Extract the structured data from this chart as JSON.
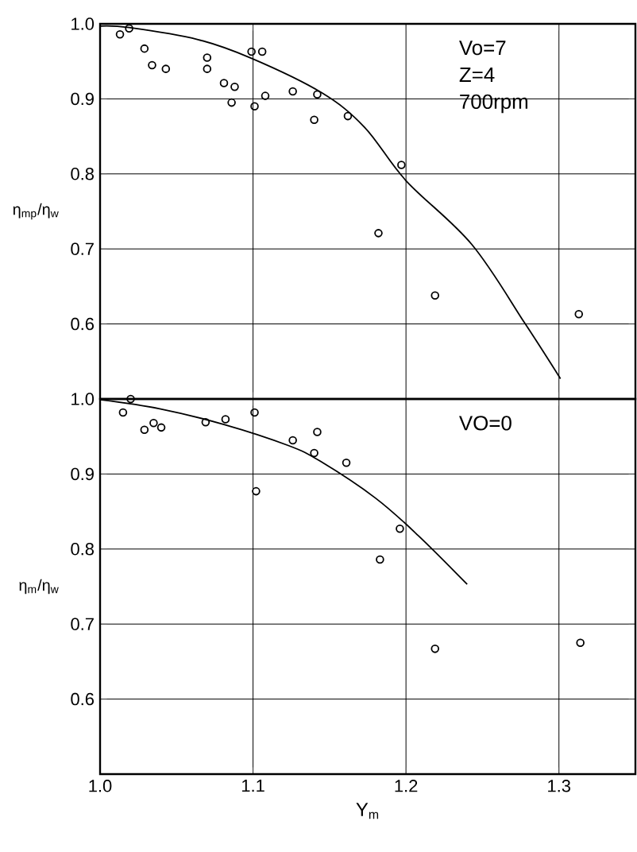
{
  "chart_data": [
    {
      "type": "scatter",
      "ylabel": "η$_{mp}$/η$_{w}$",
      "xlim": [
        1.0,
        1.35
      ],
      "ylim": [
        0.5,
        1.0
      ],
      "xticks": [
        {
          "value": 1.0,
          "label": null
        },
        {
          "value": 1.1,
          "label": null
        },
        {
          "value": 1.2,
          "label": null
        },
        {
          "value": 1.3,
          "label": null
        }
      ],
      "yticks": [
        {
          "value": 0.6,
          "label": "0.6"
        },
        {
          "value": 0.7,
          "label": "0.7"
        },
        {
          "value": 0.8,
          "label": "0.8"
        },
        {
          "value": 0.9,
          "label": "0.9"
        },
        {
          "value": 1.0,
          "label": "1.0"
        }
      ],
      "tick_labels": "y",
      "grid": true,
      "annotations": [
        "Vo=7",
        "Z=4",
        "700rpm"
      ],
      "series": [
        {
          "marker": "circle",
          "color": "#000000",
          "x": [
            1.013,
            1.019,
            1.029,
            1.034,
            1.043,
            1.07,
            1.07,
            1.081,
            1.088,
            1.086,
            1.099,
            1.106,
            1.101,
            1.108,
            1.126,
            1.142,
            1.14,
            1.162,
            1.197,
            1.182,
            1.219,
            1.313
          ],
          "values": [
            0.986,
            0.994,
            0.967,
            0.945,
            0.94,
            0.955,
            0.94,
            0.921,
            0.916,
            0.895,
            0.963,
            0.963,
            0.89,
            0.904,
            0.91,
            0.906,
            0.872,
            0.877,
            0.812,
            0.721,
            0.638,
            0.613
          ]
        },
        {
          "type": "line",
          "marker": "none",
          "color": "#000000",
          "x": [
            1.0,
            1.019,
            1.064,
            1.099,
            1.145,
            1.173,
            1.2,
            1.243,
            1.278,
            1.301
          ],
          "values": [
            0.997,
            0.995,
            0.979,
            0.954,
            0.908,
            0.862,
            0.791,
            0.706,
            0.6,
            0.527
          ]
        }
      ]
    },
    {
      "type": "scatter",
      "xlabel": "Y$_{m}$",
      "ylabel": "η$_{m}$/η$_{w}$",
      "xlim": [
        1.0,
        1.35
      ],
      "ylim": [
        0.5,
        1.0
      ],
      "xticks": [
        {
          "value": 1.0,
          "label": "1.0"
        },
        {
          "value": 1.1,
          "label": "1.1"
        },
        {
          "value": 1.2,
          "label": "1.2"
        },
        {
          "value": 1.3,
          "label": "1.3"
        }
      ],
      "yticks": [
        {
          "value": 0.6,
          "label": "0.6"
        },
        {
          "value": 0.7,
          "label": "0.7"
        },
        {
          "value": 0.8,
          "label": "0.8"
        },
        {
          "value": 0.9,
          "label": "0.9"
        },
        {
          "value": 1.0,
          "label": "1.0"
        }
      ],
      "grid": true,
      "annotations": [
        "VO=0"
      ],
      "series": [
        {
          "marker": "circle",
          "color": "#000000",
          "x": [
            1.015,
            1.02,
            1.029,
            1.035,
            1.04,
            1.069,
            1.082,
            1.101,
            1.102,
            1.126,
            1.14,
            1.142,
            1.161,
            1.183,
            1.196,
            1.219,
            1.314
          ],
          "values": [
            0.982,
            1.0,
            0.959,
            0.968,
            0.962,
            0.969,
            0.973,
            0.982,
            0.877,
            0.945,
            0.928,
            0.956,
            0.915,
            0.786,
            0.827,
            0.667,
            0.675
          ]
        },
        {
          "type": "line",
          "marker": "none",
          "color": "#000000",
          "x": [
            1.0,
            1.039,
            1.081,
            1.123,
            1.144,
            1.18,
            1.208,
            1.24
          ],
          "values": [
            0.999,
            0.987,
            0.966,
            0.938,
            0.917,
            0.868,
            0.818,
            0.753
          ]
        }
      ]
    }
  ]
}
